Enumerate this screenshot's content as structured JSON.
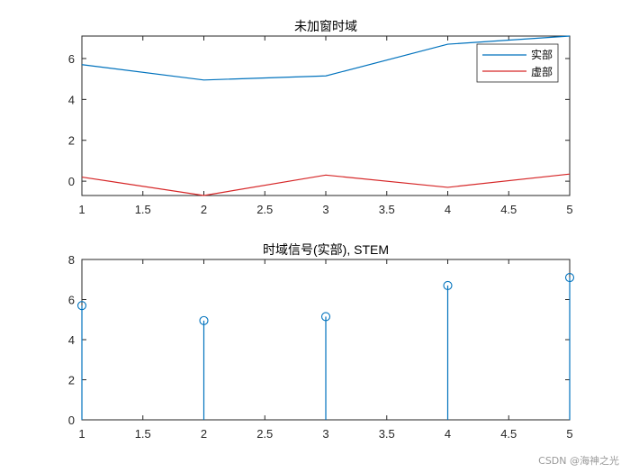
{
  "chart_data": [
    {
      "type": "line",
      "title": "未加窗时域",
      "x": [
        1,
        2,
        3,
        4,
        5
      ],
      "xlim": [
        1,
        5
      ],
      "ylim": [
        -0.7,
        7.1
      ],
      "xticks": [
        1,
        1.5,
        2,
        2.5,
        3,
        3.5,
        4,
        4.5,
        5
      ],
      "yticks": [
        0,
        2,
        4,
        6
      ],
      "series": [
        {
          "name": "实部",
          "color": "#0072BD",
          "values": [
            5.7,
            4.95,
            5.15,
            6.7,
            7.1
          ]
        },
        {
          "name": "虚部",
          "color": "#D62728",
          "values": [
            0.2,
            -0.7,
            0.3,
            -0.3,
            0.35
          ]
        }
      ],
      "legend": "top-right",
      "grid": false
    },
    {
      "type": "stem",
      "title": "时域信号(实部), STEM",
      "x": [
        1,
        2,
        3,
        4,
        5
      ],
      "xlim": [
        1,
        5
      ],
      "ylim": [
        0,
        8
      ],
      "xticks": [
        1,
        1.5,
        2,
        2.5,
        3,
        3.5,
        4,
        4.5,
        5
      ],
      "yticks": [
        0,
        2,
        4,
        6,
        8
      ],
      "series": [
        {
          "color": "#0072BD",
          "values": [
            5.7,
            4.95,
            5.15,
            6.7,
            7.1
          ]
        }
      ],
      "grid": false
    }
  ],
  "watermark": "CSDN @海神之光"
}
